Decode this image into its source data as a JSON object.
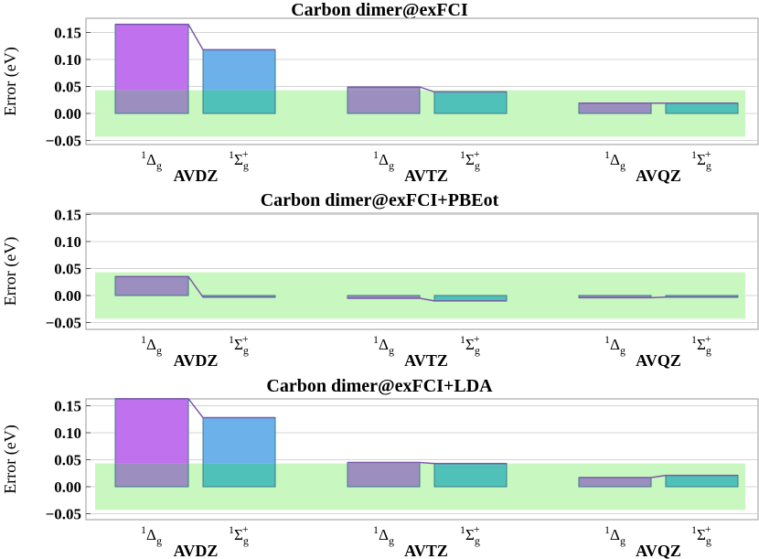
{
  "chart_data": [
    {
      "type": "bar",
      "title": "Carbon dimer@exFCI",
      "ylabel": "Error (eV)",
      "ylim": [
        -0.05,
        0.165
      ],
      "yticks": [
        "0.15",
        "0.10",
        "0.05",
        "0.00",
        "−0.05"
      ],
      "yticks_values": [
        0.15,
        0.1,
        0.05,
        0.0,
        -0.05
      ],
      "accuracy_band": [
        -0.043,
        0.043
      ],
      "groups": [
        "AVDZ",
        "AVTZ",
        "AVQZ"
      ],
      "states": [
        "Delta",
        "Sigma"
      ],
      "values": [
        [
          0.165,
          0.118
        ],
        [
          0.049,
          0.04
        ],
        [
          0.019,
          0.019
        ]
      ]
    },
    {
      "type": "bar",
      "title": "Carbon dimer@exFCI+PBEot",
      "ylabel": "Error (eV)",
      "ylim": [
        -0.05,
        0.165
      ],
      "yticks": [
        "0.15",
        "0.10",
        "0.05",
        "0.00",
        "−0.05"
      ],
      "yticks_values": [
        0.15,
        0.1,
        0.05,
        0.0,
        -0.05
      ],
      "accuracy_band": [
        -0.043,
        0.043
      ],
      "groups": [
        "AVDZ",
        "AVTZ",
        "AVQZ"
      ],
      "states": [
        "Delta",
        "Sigma"
      ],
      "values": [
        [
          0.035,
          -0.003
        ],
        [
          -0.005,
          -0.01
        ],
        [
          -0.004,
          -0.003
        ]
      ]
    },
    {
      "type": "bar",
      "title": "Carbon dimer@exFCI+LDA",
      "ylabel": "Error (eV)",
      "ylim": [
        -0.05,
        0.165
      ],
      "yticks": [
        "0.15",
        "0.10",
        "0.05",
        "0.00",
        "−0.05"
      ],
      "yticks_values": [
        0.15,
        0.1,
        0.05,
        0.0,
        -0.05
      ],
      "accuracy_band": [
        -0.043,
        0.043
      ],
      "groups": [
        "AVDZ",
        "AVTZ",
        "AVQZ"
      ],
      "states": [
        "Delta",
        "Sigma"
      ],
      "values": [
        [
          0.163,
          0.128
        ],
        [
          0.045,
          0.043
        ],
        [
          0.017,
          0.021
        ]
      ]
    }
  ],
  "state_labels": {
    "delta": {
      "sup": "1",
      "main": "Δ",
      "sub": "g",
      "sup2": ""
    },
    "sigma": {
      "sup": "1",
      "main": "Σ",
      "sub": "g",
      "sup2": "+"
    }
  },
  "colors": {
    "band": "#c9f7c0",
    "avdz_delta": "#c071ee",
    "avdz_sigma": "#6cb1ea",
    "delta_in_band": "#9c8fc0",
    "sigma_in_band": "#4fc1b9",
    "edge": "#3c7a88",
    "top_line": "#7b5aa8",
    "grid": "#d4d4d4",
    "frame": "#9a9a9a"
  }
}
